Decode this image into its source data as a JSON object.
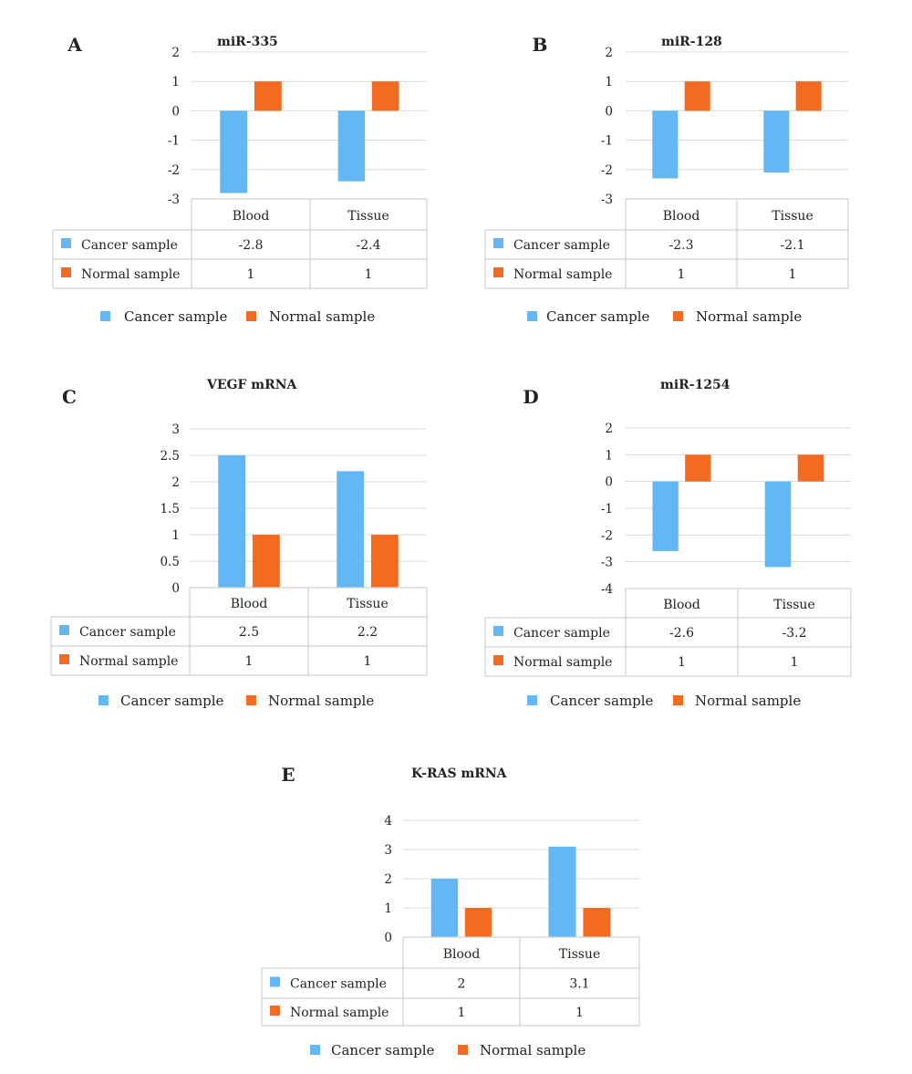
{
  "colors": {
    "cancer": "#63b7f5",
    "normal": "#f26b21",
    "grid": "#d9d9d9",
    "table_border": "#d0d0d0"
  },
  "chart_data": [
    {
      "type": "bar",
      "panel": "A",
      "title": "miR-335",
      "categories": [
        "Blood",
        "Tissue"
      ],
      "ylim": [
        -3,
        2
      ],
      "yticks": [
        "2",
        "1",
        "0",
        "-1",
        "-2",
        "-3"
      ],
      "series": [
        {
          "name": "Cancer sample",
          "values": [
            -2.8,
            -2.4
          ],
          "labels": [
            "-2.8",
            "-2.4"
          ]
        },
        {
          "name": "Normal sample",
          "values": [
            1,
            1
          ],
          "labels": [
            "1",
            "1"
          ]
        }
      ],
      "legend": "bottom",
      "grid": true,
      "data_table": true
    },
    {
      "type": "bar",
      "panel": "B",
      "title": "miR-128",
      "categories": [
        "Blood",
        "Tissue"
      ],
      "ylim": [
        -3,
        2
      ],
      "yticks": [
        "2",
        "1",
        "0",
        "-1",
        "-2",
        "-3"
      ],
      "series": [
        {
          "name": "Cancer sample",
          "values": [
            -2.3,
            -2.1
          ],
          "labels": [
            "-2.3",
            "-2.1"
          ]
        },
        {
          "name": "Normal sample",
          "values": [
            1,
            1
          ],
          "labels": [
            "1",
            "1"
          ]
        }
      ],
      "legend": "bottom",
      "grid": true,
      "data_table": true
    },
    {
      "type": "bar",
      "panel": "C",
      "title": "VEGF mRNA",
      "categories": [
        "Blood",
        "Tissue"
      ],
      "ylim": [
        0,
        3
      ],
      "yticks": [
        "3",
        "2.5",
        "2",
        "1.5",
        "1",
        "0.5",
        "0"
      ],
      "series": [
        {
          "name": "Cancer sample",
          "values": [
            2.5,
            2.2
          ],
          "labels": [
            "2.5",
            "2.2"
          ]
        },
        {
          "name": "Normal sample",
          "values": [
            1,
            1
          ],
          "labels": [
            "1",
            "1"
          ]
        }
      ],
      "legend": "bottom",
      "grid": true,
      "data_table": true
    },
    {
      "type": "bar",
      "panel": "D",
      "title": "miR-1254",
      "categories": [
        "Blood",
        "Tissue"
      ],
      "ylim": [
        -4,
        2
      ],
      "yticks": [
        "2",
        "1",
        "0",
        "-1",
        "-2",
        "-3",
        "-4"
      ],
      "series": [
        {
          "name": "Cancer sample",
          "values": [
            -2.6,
            -3.2
          ],
          "labels": [
            "-2.6",
            "-3.2"
          ]
        },
        {
          "name": "Normal sample",
          "values": [
            1,
            1
          ],
          "labels": [
            "1",
            "1"
          ]
        }
      ],
      "legend": "bottom",
      "grid": true,
      "data_table": true
    },
    {
      "type": "bar",
      "panel": "E",
      "title": "K-RAS mRNA",
      "categories": [
        "Blood",
        "Tissue"
      ],
      "ylim": [
        0,
        4
      ],
      "yticks": [
        "4",
        "3",
        "2",
        "1",
        "0"
      ],
      "series": [
        {
          "name": "Cancer sample",
          "values": [
            2,
            3.1
          ],
          "labels": [
            "2",
            "3.1"
          ]
        },
        {
          "name": "Normal sample",
          "values": [
            1,
            1
          ],
          "labels": [
            "1",
            "1"
          ]
        }
      ],
      "legend": "bottom",
      "grid": true,
      "data_table": true
    }
  ]
}
